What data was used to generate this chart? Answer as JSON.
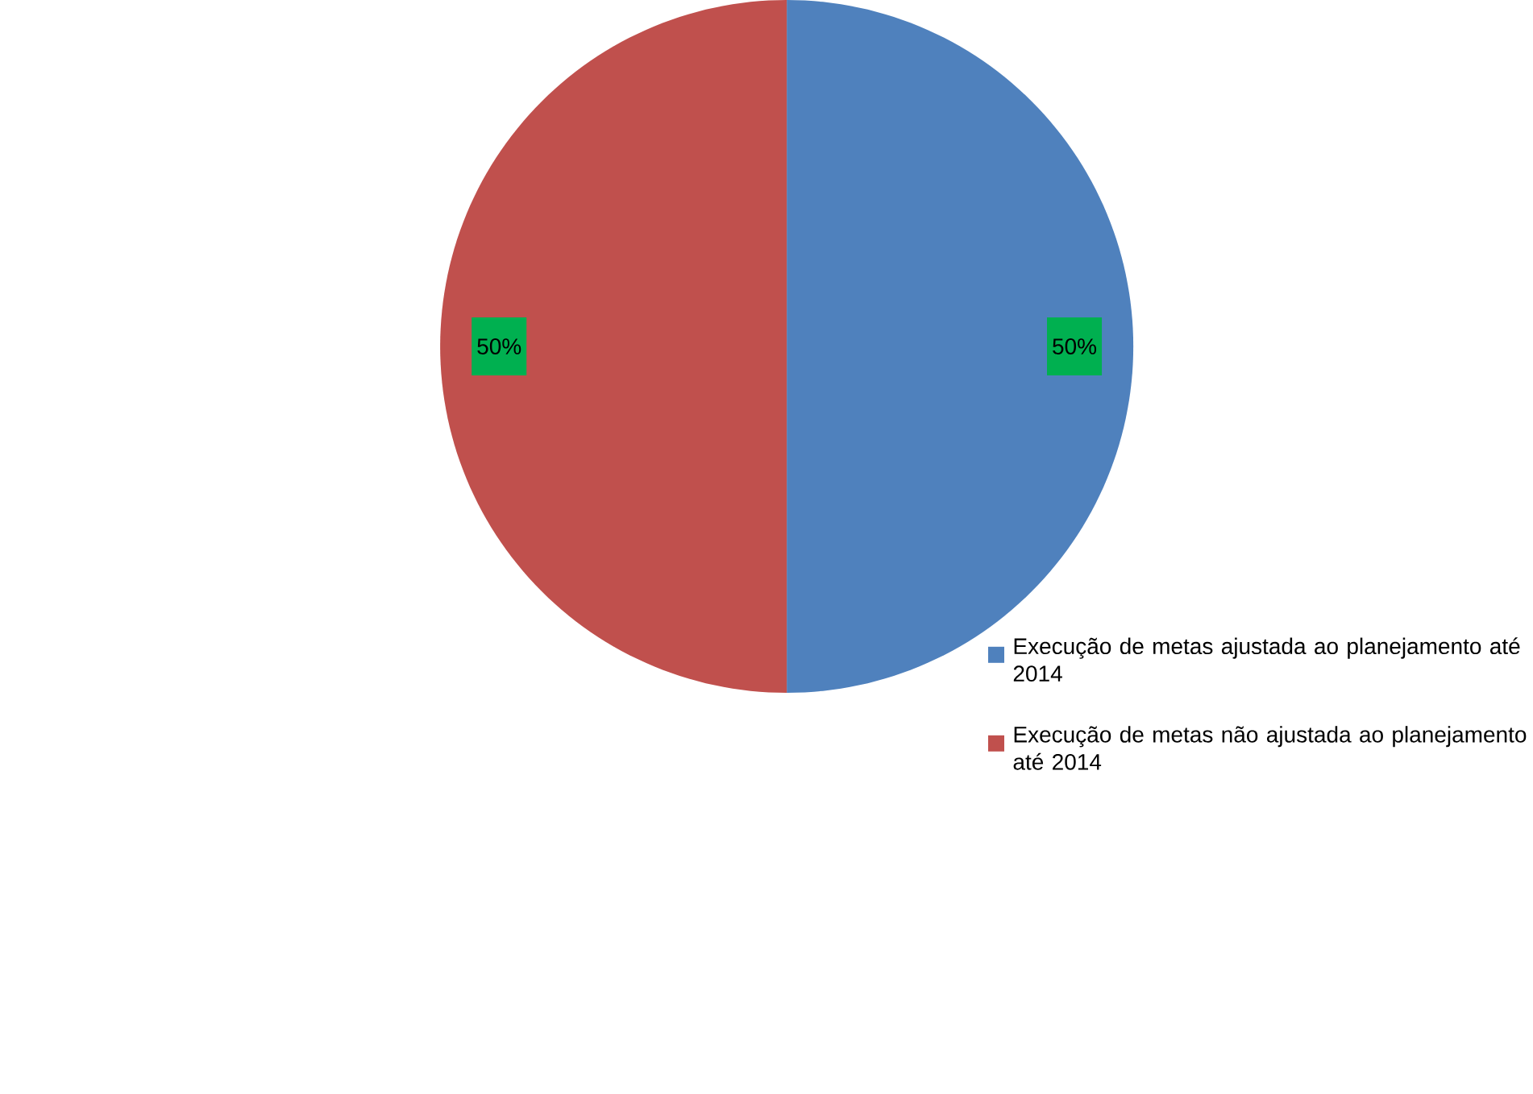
{
  "chart_data": {
    "type": "pie",
    "categories": [
      "Execução de metas ajustada ao planejamento até 2014",
      "Execução de metas não ajustada ao planejamento até 2014"
    ],
    "values": [
      50,
      50
    ],
    "colors": [
      "#4f81bd",
      "#c0504d"
    ],
    "value_labels": [
      "50%",
      "50%"
    ],
    "legend": "right"
  }
}
